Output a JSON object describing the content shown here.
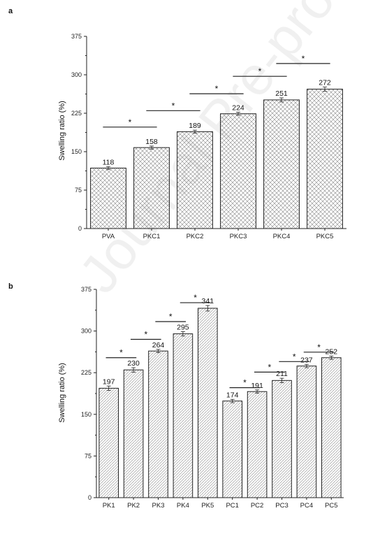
{
  "panels": [
    {
      "letter": "a",
      "ylabel": "Swelling ratio (%)",
      "yticks": [
        "0",
        "75",
        "150",
        "225",
        "300",
        "375"
      ]
    },
    {
      "letter": "b",
      "ylabel": "Swelling ratio (%)",
      "yticks": [
        "0",
        "75",
        "150",
        "225",
        "300",
        "375"
      ]
    }
  ],
  "watermark": "Journal Pre-proof",
  "chart_data": [
    {
      "type": "bar",
      "categories": [
        "PVA",
        "PKC1",
        "PKC2",
        "PKC3",
        "PKC4",
        "PKC5"
      ],
      "values": [
        118,
        158,
        189,
        224,
        251,
        272
      ],
      "data_labels": [
        "118",
        "158",
        "189",
        "224",
        "251",
        "272"
      ],
      "errors": [
        3,
        3,
        3,
        3,
        4,
        4
      ],
      "ylabel": "Swelling ratio (%)",
      "ylim": [
        0,
        375
      ],
      "yticks": [
        0,
        75,
        150,
        225,
        300,
        375
      ],
      "fill_pattern": "crosshatch",
      "significance": [
        {
          "from": 0,
          "to": 1,
          "y": 198,
          "label": "*"
        },
        {
          "from": 1,
          "to": 2,
          "y": 230,
          "label": "*"
        },
        {
          "from": 2,
          "to": 3,
          "y": 263,
          "label": "*"
        },
        {
          "from": 3,
          "to": 4,
          "y": 297,
          "label": "*"
        },
        {
          "from": 4,
          "to": 5,
          "y": 322,
          "label": "*"
        }
      ]
    },
    {
      "type": "bar",
      "categories": [
        "PK1",
        "PK2",
        "PK3",
        "PK4",
        "PK5",
        "PC1",
        "PC2",
        "PC3",
        "PC4",
        "PC5"
      ],
      "values": [
        197,
        230,
        264,
        295,
        341,
        174,
        191,
        211,
        237,
        252
      ],
      "data_labels": [
        "197",
        "230",
        "264",
        "295",
        "341",
        "174",
        "191",
        "211",
        "237",
        "252"
      ],
      "errors": [
        4,
        4,
        3,
        4,
        5,
        3,
        3,
        4,
        3,
        3
      ],
      "ylabel": "Swelling ratio (%)",
      "ylim": [
        0,
        375
      ],
      "yticks": [
        0,
        75,
        150,
        225,
        300,
        375
      ],
      "fill_pattern": "diagonal",
      "significance": [
        {
          "from": 0,
          "to": 1,
          "y": 252,
          "label": "*"
        },
        {
          "from": 1,
          "to": 2,
          "y": 285,
          "label": "*"
        },
        {
          "from": 2,
          "to": 3,
          "y": 317,
          "label": "*"
        },
        {
          "from": 3,
          "to": 4,
          "y": 351,
          "label": "*"
        },
        {
          "from": 5,
          "to": 6,
          "y": 198,
          "label": "*"
        },
        {
          "from": 6,
          "to": 7,
          "y": 226,
          "label": "*"
        },
        {
          "from": 7,
          "to": 8,
          "y": 245,
          "label": "*"
        },
        {
          "from": 8,
          "to": 9,
          "y": 262,
          "label": "*"
        }
      ]
    }
  ]
}
